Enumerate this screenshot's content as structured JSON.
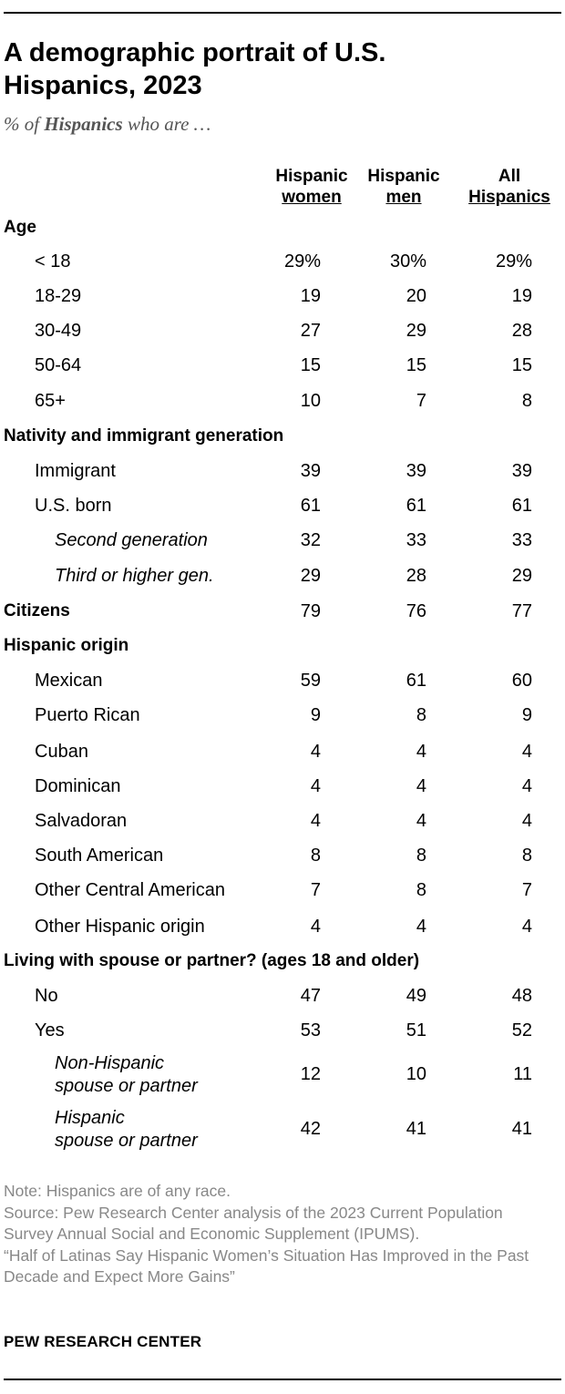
{
  "title": "A demographic portrait of U.S. Hispanics, 2023",
  "subtitle_prefix": "% of ",
  "subtitle_bold": "Hispanics",
  "subtitle_suffix": " who are …",
  "chart_data": {
    "type": "table",
    "columns": [
      {
        "line1": "Hispanic",
        "line2": "women"
      },
      {
        "line1": "Hispanic",
        "line2": "men"
      },
      {
        "line1": "All",
        "line2": "Hispanics"
      }
    ],
    "rows": [
      {
        "label": "Age",
        "level": 0,
        "values": [
          "",
          "",
          ""
        ]
      },
      {
        "label": "< 18",
        "level": 1,
        "values": [
          "29%",
          "30%",
          "29%"
        ]
      },
      {
        "label": "18-29",
        "level": 1,
        "values": [
          "19",
          "20",
          "19"
        ]
      },
      {
        "label": "30-49",
        "level": 1,
        "values": [
          "27",
          "29",
          "28"
        ]
      },
      {
        "label": "50-64",
        "level": 1,
        "values": [
          "15",
          "15",
          "15"
        ]
      },
      {
        "label": "65+",
        "level": 1,
        "values": [
          "10",
          "7",
          "8"
        ]
      },
      {
        "label": "Nativity and immigrant generation",
        "level": 0,
        "values": [
          "",
          "",
          ""
        ]
      },
      {
        "label": "Immigrant",
        "level": 1,
        "values": [
          "39",
          "39",
          "39"
        ]
      },
      {
        "label": "U.S. born",
        "level": 1,
        "values": [
          "61",
          "61",
          "61"
        ]
      },
      {
        "label": "Second generation",
        "level": 2,
        "values": [
          "32",
          "33",
          "33"
        ]
      },
      {
        "label": "Third or higher gen.",
        "level": 2,
        "values": [
          "29",
          "28",
          "29"
        ]
      },
      {
        "label": "Citizens",
        "level": 0,
        "values": [
          "79",
          "76",
          "77"
        ]
      },
      {
        "label": "Hispanic origin",
        "level": 0,
        "values": [
          "",
          "",
          ""
        ]
      },
      {
        "label": "Mexican",
        "level": 1,
        "values": [
          "59",
          "61",
          "60"
        ]
      },
      {
        "label": "Puerto Rican",
        "level": 1,
        "values": [
          "9",
          "8",
          "9"
        ]
      },
      {
        "label": "Cuban",
        "level": 1,
        "values": [
          "4",
          "4",
          "4"
        ]
      },
      {
        "label": "Dominican",
        "level": 1,
        "values": [
          "4",
          "4",
          "4"
        ]
      },
      {
        "label": "Salvadoran",
        "level": 1,
        "values": [
          "4",
          "4",
          "4"
        ]
      },
      {
        "label": "South American",
        "level": 1,
        "values": [
          "8",
          "8",
          "8"
        ]
      },
      {
        "label": "Other Central American",
        "level": 1,
        "values": [
          "7",
          "8",
          "7"
        ]
      },
      {
        "label": "Other Hispanic origin",
        "level": 1,
        "values": [
          "4",
          "4",
          "4"
        ]
      },
      {
        "label": "Living with spouse or partner? (ages 18 and older)",
        "level": 0,
        "values": [
          "",
          "",
          ""
        ]
      },
      {
        "label": "No",
        "level": 1,
        "values": [
          "47",
          "49",
          "48"
        ]
      },
      {
        "label": "Yes",
        "level": 1,
        "values": [
          "53",
          "51",
          "52"
        ]
      },
      {
        "label": "Non-Hispanic",
        "label2": "spouse or partner",
        "level": 2,
        "values": [
          "12",
          "10",
          "11"
        ]
      },
      {
        "label": "Hispanic",
        "label2": "spouse or partner",
        "level": 2,
        "values": [
          "42",
          "41",
          "41"
        ]
      }
    ]
  },
  "notes": {
    "note": "Note: Hispanics are of any race.",
    "source": "Source: Pew Research Center analysis of the 2023 Current Population Survey Annual Social and Economic Supplement (IPUMS).",
    "report": "“Half of Latinas Say Hispanic Women’s Situation Has Improved in the Past Decade and Expect More Gains”"
  },
  "brand": "PEW RESEARCH CENTER"
}
